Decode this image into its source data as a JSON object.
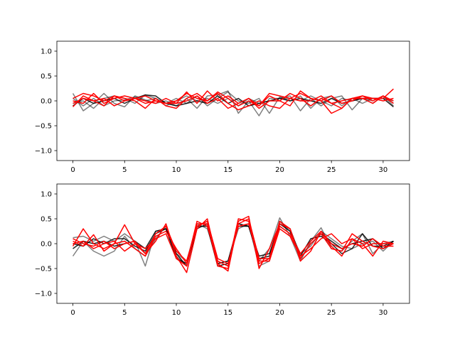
{
  "chart_data": [
    {
      "type": "line",
      "title": "",
      "xlabel": "",
      "ylabel": "",
      "xlim": [
        -1.55,
        32.55
      ],
      "ylim": [
        -1.2,
        1.2
      ],
      "xticks": [
        0,
        5,
        10,
        15,
        20,
        25,
        30
      ],
      "yticks": [
        -1.0,
        -0.5,
        0.0,
        0.5,
        1.0
      ],
      "ytick_labels": [
        "−1.0",
        "−0.5",
        "0.0",
        "0.5",
        "1.0"
      ],
      "grid": false,
      "x": [
        0,
        1,
        2,
        3,
        4,
        5,
        6,
        7,
        8,
        9,
        10,
        11,
        12,
        13,
        14,
        15,
        16,
        17,
        18,
        19,
        20,
        21,
        22,
        23,
        24,
        25,
        26,
        27,
        28,
        29,
        30,
        31
      ],
      "series": [
        {
          "color": "#000000",
          "opacity": 0.5,
          "values": [
            0.15,
            -0.2,
            -0.05,
            0.15,
            -0.05,
            -0.12,
            0.1,
            0.02,
            -0.05,
            0.0,
            -0.1,
            0.05,
            -0.15,
            0.1,
            0.12,
            0.2,
            -0.25,
            0.0,
            -0.3,
            0.05,
            0.05,
            0.1,
            -0.2,
            0.05,
            -0.1,
            0.05,
            0.1,
            -0.18,
            0.05,
            0.0,
            0.1,
            -0.1
          ]
        },
        {
          "color": "#000000",
          "opacity": 0.5,
          "values": [
            -0.05,
            0.0,
            -0.15,
            0.05,
            0.1,
            0.05,
            -0.05,
            0.12,
            0.05,
            -0.05,
            0.05,
            -0.05,
            0.1,
            -0.1,
            0.05,
            0.18,
            0.0,
            -0.05,
            0.05,
            -0.25,
            0.08,
            0.0,
            0.1,
            -0.15,
            0.05,
            0.1,
            -0.1,
            0.05,
            -0.05,
            0.05,
            0.05,
            0.0
          ]
        },
        {
          "color": "#000000",
          "opacity": 0.5,
          "values": [
            0.05,
            -0.1,
            0.05,
            -0.1,
            0.0,
            0.02,
            0.08,
            0.0,
            0.05,
            -0.1,
            0.0,
            0.1,
            0.0,
            0.05,
            -0.05,
            0.05,
            -0.1,
            0.05,
            -0.05,
            0.0,
            0.05,
            0.05,
            0.0,
            0.1,
            0.0,
            -0.1,
            0.05,
            0.0,
            0.05,
            -0.05,
            0.1,
            -0.05
          ]
        },
        {
          "color": "#000000",
          "opacity": 0.85,
          "values": [
            -0.1,
            0.05,
            -0.05,
            0.0,
            0.05,
            -0.05,
            0.05,
            0.12,
            0.1,
            -0.05,
            -0.1,
            -0.05,
            0.0,
            -0.05,
            0.1,
            -0.05,
            0.05,
            -0.1,
            -0.05,
            0.0,
            0.05,
            0.0,
            0.05,
            0.0,
            -0.05,
            0.05,
            -0.05,
            0.0,
            0.05,
            0.05,
            0.05,
            -0.12
          ]
        },
        {
          "color": "#ff0000",
          "opacity": 1.0,
          "values": [
            -0.12,
            0.1,
            0.0,
            -0.1,
            0.1,
            0.0,
            0.05,
            -0.05,
            0.0,
            -0.05,
            0.0,
            0.15,
            0.05,
            0.0,
            0.15,
            -0.05,
            -0.18,
            -0.1,
            0.0,
            -0.1,
            -0.15,
            0.05,
            0.15,
            0.05,
            0.0,
            -0.25,
            -0.15,
            0.05,
            0.05,
            0.05,
            0.05,
            0.24
          ]
        },
        {
          "color": "#ff0000",
          "opacity": 1.0,
          "values": [
            0.05,
            0.15,
            0.1,
            0.0,
            0.1,
            0.05,
            0.0,
            -0.15,
            0.05,
            -0.1,
            -0.15,
            0.05,
            0.15,
            0.0,
            0.18,
            0.05,
            -0.1,
            0.0,
            -0.1,
            0.1,
            0.0,
            -0.1,
            0.2,
            0.05,
            0.0,
            0.1,
            -0.05,
            0.0,
            0.1,
            0.05,
            0.0,
            0.05
          ]
        },
        {
          "color": "#ff0000",
          "opacity": 1.0,
          "values": [
            0.0,
            -0.05,
            0.15,
            -0.05,
            0.05,
            0.1,
            0.05,
            0.0,
            -0.05,
            0.05,
            -0.05,
            0.18,
            -0.05,
            0.2,
            0.0,
            0.1,
            -0.05,
            0.05,
            -0.15,
            0.0,
            0.0,
            0.15,
            0.05,
            -0.1,
            0.05,
            -0.05,
            0.0,
            0.05,
            0.1,
            0.0,
            0.1,
            0.0
          ]
        },
        {
          "color": "#ff0000",
          "opacity": 1.0,
          "values": [
            -0.05,
            0.05,
            0.0,
            0.05,
            -0.1,
            0.0,
            0.05,
            0.1,
            0.0,
            -0.05,
            -0.05,
            0.0,
            0.1,
            -0.05,
            0.05,
            -0.15,
            -0.05,
            0.05,
            -0.1,
            0.15,
            0.1,
            0.05,
            0.0,
            0.0,
            0.1,
            -0.05,
            -0.15,
            0.05,
            0.05,
            -0.05,
            0.1,
            -0.05
          ]
        }
      ]
    },
    {
      "type": "line",
      "title": "",
      "xlabel": "",
      "ylabel": "",
      "xlim": [
        -1.55,
        32.55
      ],
      "ylim": [
        -1.2,
        1.2
      ],
      "xticks": [
        0,
        5,
        10,
        15,
        20,
        25,
        30
      ],
      "yticks": [
        -1.0,
        -0.5,
        0.0,
        0.5,
        1.0
      ],
      "ytick_labels": [
        "−1.0",
        "−0.5",
        "0.0",
        "0.5",
        "1.0"
      ],
      "grid": false,
      "x": [
        0,
        1,
        2,
        3,
        4,
        5,
        6,
        7,
        8,
        9,
        10,
        11,
        12,
        13,
        14,
        15,
        16,
        17,
        18,
        19,
        20,
        21,
        22,
        23,
        24,
        25,
        26,
        27,
        28,
        29,
        30,
        31
      ],
      "series": [
        {
          "color": "#000000",
          "opacity": 0.5,
          "values": [
            0.12,
            0.15,
            0.05,
            0.15,
            0.05,
            0.2,
            0.05,
            -0.45,
            0.25,
            0.3,
            -0.2,
            -0.35,
            0.4,
            0.3,
            -0.35,
            -0.45,
            0.4,
            0.35,
            -0.35,
            -0.1,
            0.52,
            0.15,
            -0.35,
            0.05,
            0.32,
            -0.1,
            -0.15,
            0.05,
            0.2,
            -0.2,
            0.0,
            0.05
          ]
        },
        {
          "color": "#000000",
          "opacity": 0.5,
          "values": [
            -0.25,
            0.05,
            -0.15,
            -0.25,
            -0.15,
            0.15,
            -0.1,
            -0.25,
            0.1,
            0.35,
            -0.25,
            -0.45,
            0.35,
            0.45,
            -0.4,
            -0.35,
            0.3,
            0.4,
            -0.45,
            -0.35,
            0.45,
            0.25,
            -0.2,
            -0.05,
            0.25,
            0.1,
            -0.05,
            -0.1,
            0.0,
            0.05,
            -0.15,
            0.05
          ]
        },
        {
          "color": "#000000",
          "opacity": 0.85,
          "values": [
            0.0,
            -0.05,
            0.1,
            0.0,
            0.1,
            0.1,
            -0.05,
            -0.15,
            0.2,
            0.3,
            -0.2,
            -0.45,
            0.35,
            0.35,
            -0.45,
            -0.4,
            0.35,
            0.35,
            -0.25,
            -0.2,
            0.4,
            0.3,
            -0.25,
            0.1,
            0.15,
            0.0,
            -0.2,
            -0.1,
            0.2,
            -0.05,
            -0.05,
            0.05
          ]
        },
        {
          "color": "#000000",
          "opacity": 0.85,
          "values": [
            -0.1,
            0.05,
            0.0,
            0.05,
            -0.05,
            0.0,
            0.05,
            -0.1,
            0.25,
            0.3,
            -0.3,
            -0.4,
            0.3,
            0.4,
            -0.4,
            -0.35,
            0.4,
            0.35,
            -0.3,
            -0.25,
            0.4,
            0.25,
            -0.3,
            0.0,
            0.2,
            0.05,
            -0.1,
            0.0,
            0.05,
            0.1,
            -0.1,
            0.05
          ]
        },
        {
          "color": "#ff0000",
          "opacity": 1.0,
          "values": [
            0.05,
            -0.05,
            0.18,
            -0.15,
            0.0,
            0.38,
            0.0,
            -0.2,
            0.05,
            0.4,
            -0.25,
            -0.58,
            0.3,
            0.5,
            -0.4,
            -0.55,
            0.45,
            0.55,
            -0.5,
            -0.1,
            0.4,
            0.3,
            -0.35,
            -0.15,
            0.25,
            -0.05,
            -0.25,
            0.1,
            0.0,
            -0.25,
            0.05,
            0.0
          ]
        },
        {
          "color": "#ff0000",
          "opacity": 1.0,
          "values": [
            -0.05,
            0.3,
            0.0,
            -0.1,
            0.0,
            0.05,
            -0.1,
            -0.25,
            0.15,
            0.25,
            -0.1,
            -0.4,
            0.45,
            0.35,
            -0.35,
            -0.45,
            0.5,
            0.45,
            -0.4,
            -0.3,
            0.35,
            0.2,
            -0.2,
            0.05,
            0.25,
            0.0,
            -0.1,
            0.0,
            -0.05,
            0.1,
            -0.05,
            -0.05
          ]
        },
        {
          "color": "#ff0000",
          "opacity": 1.0,
          "values": [
            0.1,
            0.0,
            -0.05,
            0.05,
            -0.1,
            0.0,
            0.05,
            -0.2,
            0.2,
            0.35,
            -0.15,
            -0.35,
            0.35,
            0.45,
            -0.3,
            -0.4,
            0.35,
            0.4,
            -0.35,
            -0.35,
            0.3,
            0.15,
            -0.25,
            -0.1,
            0.1,
            0.2,
            0.0,
            0.1,
            -0.1,
            0.0,
            0.0,
            0.0
          ]
        },
        {
          "color": "#ff0000",
          "opacity": 1.0,
          "values": [
            0.0,
            0.05,
            -0.1,
            0.0,
            0.05,
            -0.15,
            0.0,
            -0.1,
            0.1,
            0.2,
            -0.3,
            -0.45,
            0.4,
            0.4,
            -0.45,
            -0.5,
            0.4,
            0.5,
            -0.3,
            -0.3,
            0.45,
            0.3,
            -0.3,
            0.0,
            0.2,
            -0.1,
            -0.15,
            0.2,
            0.05,
            -0.05,
            -0.1,
            0.0
          ]
        }
      ]
    }
  ]
}
